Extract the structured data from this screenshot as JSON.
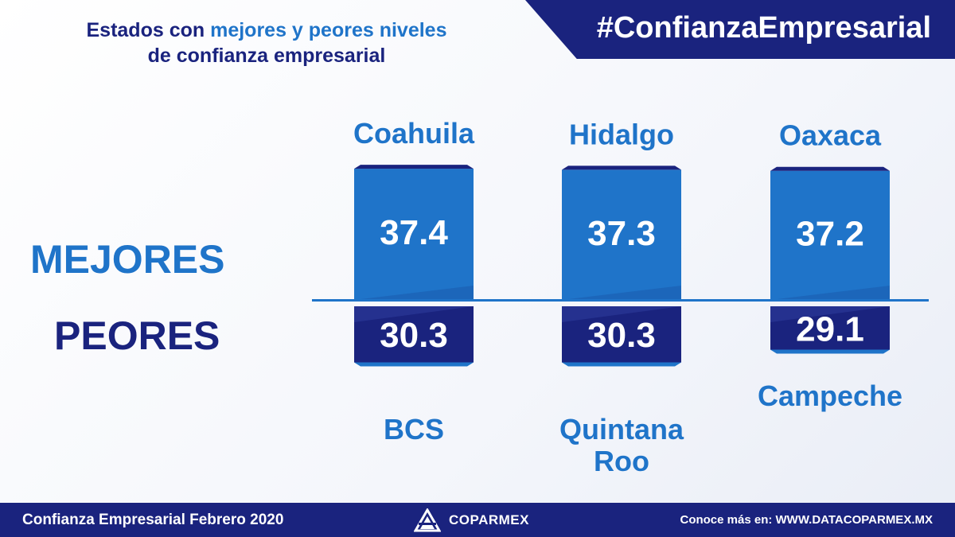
{
  "header": {
    "title_line1_pre": "Estados con ",
    "title_line1_highlight": "mejores y peores niveles",
    "title_line2": "de confianza empresarial",
    "hashtag": "#ConfianzaEmpresarial"
  },
  "labels": {
    "best": "MEJORES",
    "worst": "PEORES"
  },
  "chart_data": {
    "type": "bar",
    "title": "Estados con mejores y peores niveles de confianza empresarial",
    "series": [
      {
        "name": "MEJORES",
        "categories": [
          "Coahuila",
          "Hidalgo",
          "Oaxaca"
        ],
        "values": [
          37.4,
          37.3,
          37.2
        ],
        "value_labels": [
          "37.4",
          "37.3",
          "37.2"
        ]
      },
      {
        "name": "PEORES",
        "categories": [
          "BCS",
          "Quintana Roo",
          "Campeche"
        ],
        "values": [
          30.3,
          30.3,
          29.1
        ],
        "value_labels": [
          "30.3",
          "30.3",
          "29.1"
        ]
      }
    ],
    "colors": {
      "best": "#1f74c9",
      "best_dark": "#1957a8",
      "worst": "#1a237e",
      "worst_light": "#283593"
    }
  },
  "footer": {
    "left": "Confianza Empresarial Febrero 2020",
    "brand": "COPARMEX",
    "right": "Conoce más en:  WWW.DATACOPARMEX.MX",
    "logo_icon": "coparmex-logo-icon"
  }
}
